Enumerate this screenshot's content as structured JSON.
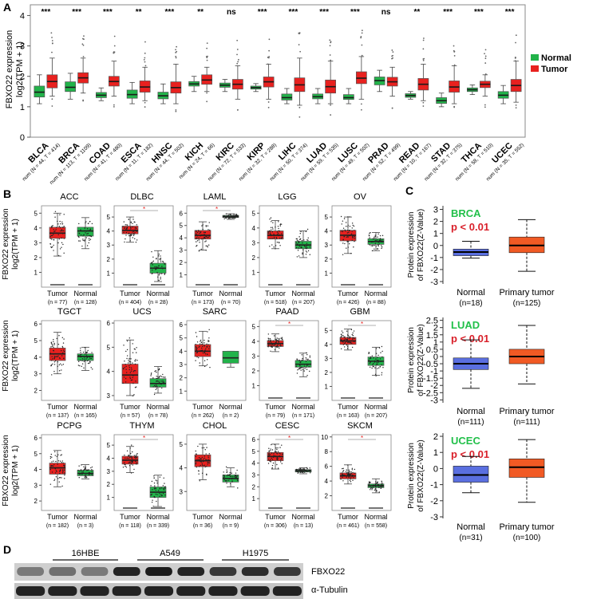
{
  "colors": {
    "tumor": "#e8211f",
    "normal": "#22b34a",
    "normal_c": "#5a6fe0",
    "tumor_c": "#f15a24",
    "label_green": "#22c04a",
    "label_red": "#d9202a"
  },
  "panel_labels": [
    "A",
    "B",
    "C",
    "D"
  ],
  "chart_data": [
    {
      "id": "A",
      "type": "boxplot",
      "ylabel_line1": "FBXO22 expression",
      "ylabel_line2": "log2(TPM + 1)",
      "ylim": [
        0,
        4.3
      ],
      "yticks": [
        "0",
        "1",
        "2",
        "3",
        "4"
      ],
      "legend": {
        "normal": "Normal",
        "tumor": "Tumor",
        "position": "right"
      },
      "series": [
        {
          "name": "BLCA",
          "sig": "***",
          "num": "num (N = 44, T = 414)",
          "normal": [
            1.1,
            1.32,
            1.48,
            1.68,
            2.05
          ],
          "tumor": [
            1.35,
            1.62,
            1.83,
            2.05,
            2.6
          ]
        },
        {
          "name": "BRCA",
          "sig": "***",
          "num": "num (N = 113, T = 1109)",
          "normal": [
            1.25,
            1.5,
            1.64,
            1.82,
            2.1
          ],
          "tumor": [
            1.45,
            1.78,
            1.95,
            2.12,
            2.6
          ]
        },
        {
          "name": "COAD",
          "sig": "***",
          "num": "num (N = 41, T = 480)",
          "normal": [
            1.2,
            1.3,
            1.38,
            1.47,
            1.62
          ],
          "tumor": [
            1.35,
            1.68,
            1.83,
            2.0,
            2.5
          ]
        },
        {
          "name": "ESCA",
          "sig": "**",
          "num": "num (N = 11, T = 182)",
          "normal": [
            1.1,
            1.28,
            1.4,
            1.55,
            1.8
          ],
          "tumor": [
            1.2,
            1.48,
            1.65,
            1.85,
            2.3
          ]
        },
        {
          "name": "HNSC",
          "sig": "***",
          "num": "num (N = 44, T = 502)",
          "normal": [
            1.1,
            1.26,
            1.36,
            1.48,
            1.75
          ],
          "tumor": [
            1.1,
            1.45,
            1.63,
            1.82,
            2.4
          ]
        },
        {
          "name": "KICH",
          "sig": "**",
          "num": "num (N = 24, T = 66)",
          "normal": [
            1.5,
            1.68,
            1.75,
            1.83,
            2.0
          ],
          "tumor": [
            1.5,
            1.74,
            1.88,
            2.05,
            2.3
          ]
        },
        {
          "name": "KIRC",
          "sig": "ns",
          "num": "num (N = 72, T = 533)",
          "normal": [
            1.5,
            1.64,
            1.71,
            1.78,
            1.9
          ],
          "tumor": [
            1.25,
            1.58,
            1.74,
            1.9,
            2.35
          ]
        },
        {
          "name": "KIRP",
          "sig": "***",
          "num": "num (N = 32, T = 288)",
          "normal": [
            1.5,
            1.58,
            1.63,
            1.68,
            1.76
          ],
          "tumor": [
            1.25,
            1.65,
            1.82,
            1.98,
            2.4
          ]
        },
        {
          "name": "LIHC",
          "sig": "***",
          "num": "num (N = 50, T = 374)",
          "normal": [
            1.1,
            1.22,
            1.3,
            1.42,
            1.6
          ],
          "tumor": [
            1.05,
            1.5,
            1.72,
            1.95,
            2.6
          ]
        },
        {
          "name": "LUAD",
          "sig": "***",
          "num": "num (N = 59, T = 535)",
          "normal": [
            1.1,
            1.26,
            1.33,
            1.42,
            1.6
          ],
          "tumor": [
            1.1,
            1.45,
            1.66,
            1.88,
            2.5
          ]
        },
        {
          "name": "LUSC",
          "sig": "***",
          "num": "num (N = 49, T = 502)",
          "normal": [
            1.1,
            1.24,
            1.3,
            1.4,
            1.6
          ],
          "tumor": [
            1.25,
            1.76,
            1.94,
            2.15,
            2.65
          ]
        },
        {
          "name": "PRAD",
          "sig": "ns",
          "num": "num (N = 52, T = 499)",
          "normal": [
            1.5,
            1.72,
            1.86,
            1.98,
            2.2
          ],
          "tumor": [
            1.35,
            1.68,
            1.82,
            1.97,
            2.3
          ]
        },
        {
          "name": "READ",
          "sig": "**",
          "num": "num (N = 10, T = 167)",
          "normal": [
            1.25,
            1.31,
            1.37,
            1.43,
            1.5
          ],
          "tumor": [
            1.2,
            1.55,
            1.74,
            1.93,
            2.4
          ]
        },
        {
          "name": "STAD",
          "sig": "***",
          "num": "num (N = 32, T = 375)",
          "normal": [
            1.0,
            1.11,
            1.2,
            1.3,
            1.45
          ],
          "tumor": [
            1.1,
            1.48,
            1.65,
            1.85,
            2.35
          ]
        },
        {
          "name": "THCA",
          "sig": "***",
          "num": "num (N = 58, T = 510)",
          "normal": [
            1.4,
            1.5,
            1.56,
            1.62,
            1.72
          ],
          "tumor": [
            1.35,
            1.63,
            1.74,
            1.84,
            2.05
          ]
        },
        {
          "name": "UCEC",
          "sig": "***",
          "num": "num (N = 35, T = 552)",
          "normal": [
            1.1,
            1.28,
            1.38,
            1.5,
            1.7
          ],
          "tumor": [
            1.15,
            1.5,
            1.7,
            1.9,
            2.5
          ]
        }
      ]
    },
    {
      "id": "B",
      "type": "boxplot",
      "ylabel_line1": "FBXO22 expression",
      "ylabel_line2": "log2(TPM + 1)",
      "panels": [
        {
          "title": "ACC",
          "ymin": 0,
          "ymax": 5.5,
          "ticks": [
            1,
            2,
            3,
            4,
            5
          ],
          "first": "Tumor",
          "second": "Normal",
          "n1": "(n = 77)",
          "n2": "(n = 128)",
          "b1": [
            2.1,
            3.3,
            3.65,
            4.05,
            5.0
          ],
          "b2": [
            2.6,
            3.45,
            3.8,
            4.05,
            4.7
          ],
          "star": false
        },
        {
          "title": "DLBC",
          "ymin": 0,
          "ymax": 5.8,
          "ticks": [
            1,
            2,
            3,
            4,
            5
          ],
          "first": "Tumor",
          "second": "Normal",
          "n1": "(n = 404)",
          "n2": "(n = 28)",
          "b1": [
            3.2,
            3.8,
            4.05,
            4.35,
            5.0
          ],
          "b2": [
            0.4,
            1.0,
            1.35,
            1.7,
            2.6
          ],
          "star": true
        },
        {
          "title": "LAML",
          "ymin": 0,
          "ymax": 6.6,
          "ticks": [
            1,
            2,
            3,
            4,
            5,
            6
          ],
          "first": "Tumor",
          "second": "Normal",
          "n1": "(n = 173)",
          "n2": "(n = 70)",
          "b1": [
            3.0,
            3.9,
            4.2,
            4.6,
            5.3
          ],
          "b2": [
            5.5,
            5.65,
            5.72,
            5.82,
            5.95
          ],
          "star": true
        },
        {
          "title": "LGG",
          "ymin": 0,
          "ymax": 5.5,
          "ticks": [
            1,
            2,
            3,
            4,
            5
          ],
          "first": "Tumor",
          "second": "Normal",
          "n1": "(n = 518)",
          "n2": "(n = 207)",
          "b1": [
            2.6,
            3.25,
            3.5,
            3.8,
            4.5
          ],
          "b2": [
            2.0,
            2.6,
            2.85,
            3.1,
            3.8
          ],
          "star": false
        },
        {
          "title": "OV",
          "ymin": 0,
          "ymax": 5.8,
          "ticks": [
            1,
            2,
            3,
            4,
            5
          ],
          "first": "Tumor",
          "second": "Normal",
          "n1": "(n = 426)",
          "n2": "(n = 88)",
          "b1": [
            2.4,
            3.3,
            3.7,
            4.05,
            5.0
          ],
          "b2": [
            2.6,
            3.05,
            3.25,
            3.45,
            3.9
          ],
          "star": false
        },
        {
          "title": "TGCT",
          "ymin": 1.4,
          "ymax": 6.2,
          "ticks": [
            2,
            3,
            4,
            5,
            6
          ],
          "first": "Tumor",
          "second": "Normal",
          "n1": "(n = 137)",
          "n2": "(n = 165)",
          "b1": [
            3.0,
            3.8,
            4.2,
            4.55,
            5.5
          ],
          "b2": [
            3.2,
            3.8,
            4.05,
            4.2,
            4.6
          ],
          "star": false
        },
        {
          "title": "UCS",
          "ymin": 2.8,
          "ymax": 6.1,
          "ticks": [
            3,
            4,
            5,
            6
          ],
          "first": "Tumor",
          "second": "Normal",
          "n1": "(n = 57)",
          "n2": "(n = 78)",
          "b1": [
            3.0,
            3.5,
            3.85,
            4.3,
            5.3
          ],
          "b2": [
            3.1,
            3.35,
            3.5,
            3.7,
            4.2
          ],
          "star": false
        },
        {
          "title": "SARC",
          "ymin": 0.3,
          "ymax": 6.3,
          "ticks": [
            1,
            2,
            3,
            4,
            5,
            6
          ],
          "first": "Tumor",
          "second": "Normal",
          "n1": "(n = 262)",
          "n2": "(n = 2)",
          "b1": [
            2.9,
            3.6,
            4.0,
            4.5,
            5.5
          ],
          "b2": [
            2.8,
            3.1,
            3.5,
            4.0,
            4.0
          ],
          "star": false
        },
        {
          "title": "PAAD",
          "ymin": 0,
          "ymax": 5.4,
          "ticks": [
            1,
            2,
            3,
            4,
            5
          ],
          "first": "Tumor",
          "second": "Normal",
          "n1": "(n = 79)",
          "n2": "(n = 171)",
          "b1": [
            3.3,
            3.65,
            3.85,
            4.05,
            4.5
          ],
          "b2": [
            1.6,
            2.25,
            2.45,
            2.7,
            3.2
          ],
          "star": true
        },
        {
          "title": "GBM",
          "ymin": 0,
          "ymax": 5.7,
          "ticks": [
            1,
            2,
            3,
            4,
            5
          ],
          "first": "Tumor",
          "second": "Normal",
          "n1": "(n = 163)",
          "n2": "(n = 207)",
          "b1": [
            3.6,
            4.0,
            4.25,
            4.5,
            5.1
          ],
          "b2": [
            1.8,
            2.5,
            2.8,
            3.1,
            3.8
          ],
          "star": true
        },
        {
          "title": "PCPG",
          "ymin": 1.4,
          "ymax": 6.2,
          "ticks": [
            2,
            3,
            4,
            5,
            6
          ],
          "first": "Tumor",
          "second": "Normal",
          "n1": "(n = 182)",
          "n2": "(n = 3)",
          "b1": [
            2.9,
            3.7,
            4.1,
            4.4,
            5.2
          ],
          "b2": [
            3.4,
            3.6,
            3.75,
            3.95,
            4.3
          ],
          "star": false
        },
        {
          "title": "THYM",
          "ymin": 0,
          "ymax": 5.8,
          "ticks": [
            1,
            2,
            3,
            4,
            5
          ],
          "first": "Tumor",
          "second": "Normal",
          "n1": "(n = 118)",
          "n2": "(n = 339)",
          "b1": [
            2.9,
            3.55,
            3.85,
            4.15,
            4.9
          ],
          "b2": [
            0.3,
            1.0,
            1.4,
            1.8,
            2.7
          ],
          "star": true
        },
        {
          "title": "CHOL",
          "ymin": 2.2,
          "ymax": 5.4,
          "ticks": [
            3,
            4,
            5
          ],
          "first": "Tumor",
          "second": "Normal",
          "n1": "(n = 36)",
          "n2": "(n = 9)",
          "b1": [
            3.5,
            4.05,
            4.3,
            4.55,
            5.0
          ],
          "b2": [
            3.2,
            3.4,
            3.55,
            3.7,
            4.0
          ],
          "star": false
        },
        {
          "title": "CESC",
          "ymin": 0,
          "ymax": 6.4,
          "ticks": [
            1,
            2,
            3,
            4,
            5,
            6
          ],
          "first": "Tumor",
          "second": "Normal",
          "n1": "(n = 306)",
          "n2": "(n = 13)",
          "b1": [
            3.5,
            4.2,
            4.55,
            4.9,
            5.6
          ],
          "b2": [
            3.1,
            3.25,
            3.35,
            3.45,
            3.6
          ],
          "star": true
        },
        {
          "title": "SKCM",
          "ymin": 0,
          "ymax": 10.3,
          "ticks": [
            2,
            4,
            6,
            8,
            10
          ],
          "first": "Tumor",
          "second": "Normal",
          "n1": "(n = 461)",
          "n2": "(n = 558)",
          "b1": [
            3.6,
            4.3,
            4.7,
            5.1,
            6.2
          ],
          "b2": [
            2.4,
            3.1,
            3.35,
            3.6,
            4.3
          ],
          "star": true
        }
      ]
    },
    {
      "id": "C",
      "type": "boxplot",
      "ylabel_line1": "Protein expression",
      "ylabel_line2": "of FBXO22(Z-Value)",
      "panels": [
        {
          "label": "BRCA",
          "p": "p < 0.01",
          "ylim": [
            -3.2,
            3.3
          ],
          "ticks": [
            -3,
            -2,
            -1,
            0,
            1,
            2,
            3
          ],
          "groups": [
            "Normal",
            "Primary tumor"
          ],
          "ns": [
            "(n=18)",
            "(n=125)"
          ],
          "normal": [
            -1.05,
            -0.85,
            -0.55,
            -0.3,
            0.35
          ],
          "tumor": [
            -2.15,
            -0.6,
            0.0,
            0.7,
            2.15
          ]
        },
        {
          "label": "LUAD",
          "p": "p < 0.01",
          "ylim": [
            -3.2,
            2.7
          ],
          "ticks": [
            -3,
            -2.5,
            -2,
            -1.5,
            -1,
            -0.5,
            0,
            0.5,
            1,
            1.5,
            2,
            2.5
          ],
          "groups": [
            "Normal",
            "Primary tumor"
          ],
          "ns": [
            "(n=111)",
            "(n=111)"
          ],
          "normal": [
            -2.2,
            -0.9,
            -0.5,
            -0.1,
            1.15
          ],
          "tumor": [
            -1.9,
            -0.5,
            0.0,
            0.5,
            2.15
          ]
        },
        {
          "label": "UCEC",
          "p": "p < 0.01",
          "ylim": [
            -3.1,
            2.2
          ],
          "ticks": [
            -3,
            -2,
            -1,
            0,
            1,
            2
          ],
          "groups": [
            "Normal",
            "Primary tumor"
          ],
          "ns": [
            "(n=31)",
            "(n=100)"
          ],
          "normal": [
            -1.5,
            -0.85,
            -0.4,
            0.15,
            0.75
          ],
          "tumor": [
            -2.1,
            -0.55,
            0.08,
            0.6,
            1.8
          ]
        }
      ]
    }
  ],
  "western": {
    "groups": [
      "16HBE",
      "A549",
      "H1975"
    ],
    "bands": [
      "FBXO22",
      "α-Tubulin"
    ],
    "lanes": 9,
    "fbxo22_intensity": [
      0.45,
      0.5,
      0.45,
      0.9,
      0.95,
      0.9,
      0.8,
      0.85,
      0.8
    ]
  }
}
